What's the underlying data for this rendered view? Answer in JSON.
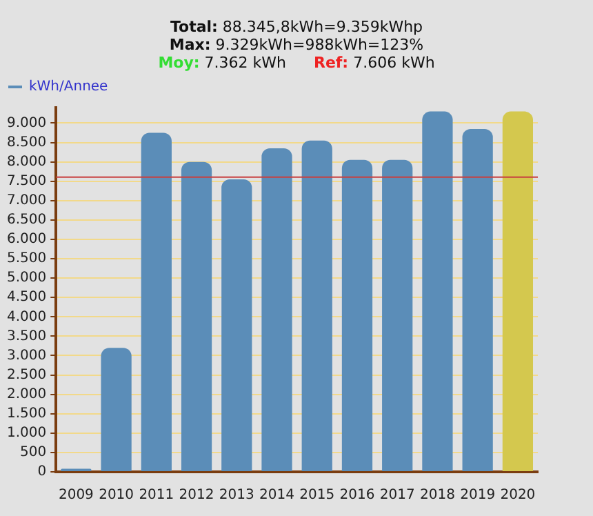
{
  "chart_data": {
    "type": "bar",
    "title": "Total: 88.345,8kWh=9.359kWhp",
    "subtitle": "Max: 9.329kWh=988kWh=123%",
    "annotations": [
      "Moy: 7.362 kWh",
      "Ref: 7.606 kWh"
    ],
    "categories": [
      "2009",
      "2010",
      "2011",
      "2012",
      "2013",
      "2014",
      "2015",
      "2016",
      "2017",
      "2018",
      "2019",
      "2020"
    ],
    "series": [
      {
        "name": "kWh/Annee",
        "color": "#5b8db8",
        "colors": [
          "#5b8db8",
          "#5b8db8",
          "#5b8db8",
          "#5b8db8",
          "#5b8db8",
          "#5b8db8",
          "#5b8db8",
          "#5b8db8",
          "#5b8db8",
          "#5b8db8",
          "#5b8db8",
          "#d4c84e"
        ],
        "values": [
          80,
          3200,
          8750,
          8000,
          7550,
          8350,
          8550,
          8050,
          8050,
          9300,
          8850,
          9300
        ]
      }
    ],
    "ylim": [
      0,
      9400
    ],
    "yticks": [
      {
        "value": 0,
        "label": "0"
      },
      {
        "value": 500,
        "label": "500"
      },
      {
        "value": 1000,
        "label": "1.000"
      },
      {
        "value": 1500,
        "label": "1.500"
      },
      {
        "value": 2000,
        "label": "2.000"
      },
      {
        "value": 2500,
        "label": "2.500"
      },
      {
        "value": 3000,
        "label": "3.000"
      },
      {
        "value": 3500,
        "label": "3.500"
      },
      {
        "value": 4000,
        "label": "4.000"
      },
      {
        "value": 4500,
        "label": "4.500"
      },
      {
        "value": 5000,
        "label": "5.000"
      },
      {
        "value": 5500,
        "label": "5.500"
      },
      {
        "value": 6000,
        "label": "6.000"
      },
      {
        "value": 6500,
        "label": "6.500"
      },
      {
        "value": 7000,
        "label": "7.000"
      },
      {
        "value": 7500,
        "label": "7.500"
      },
      {
        "value": 8000,
        "label": "8.000"
      },
      {
        "value": 8500,
        "label": "8.500"
      },
      {
        "value": 9000,
        "label": "9.000"
      }
    ],
    "ref_lines": [
      {
        "axis": "y",
        "value": 7606,
        "color": "#c84040"
      }
    ],
    "grid": "y",
    "legend": "top left"
  }
}
